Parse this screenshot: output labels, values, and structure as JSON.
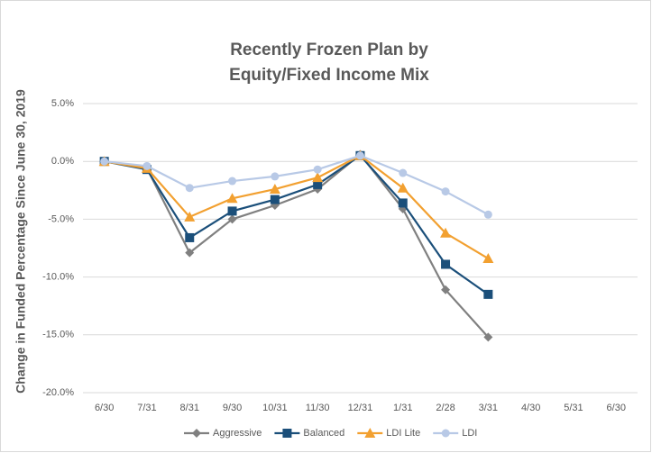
{
  "chart_data": {
    "type": "line",
    "title": [
      "Recently Frozen Plan by",
      "Equity/Fixed Income Mix"
    ],
    "y_label": "Change in Funded Percentage Since June 30, 2019",
    "categories": [
      "6/30",
      "7/31",
      "8/31",
      "9/30",
      "10/31",
      "11/30",
      "12/31",
      "1/31",
      "2/28",
      "3/31",
      "4/30",
      "5/31",
      "6/30"
    ],
    "series": [
      {
        "name": "Aggressive",
        "color": "#808080",
        "marker": "diamond",
        "values": [
          0.0,
          -0.6,
          -7.9,
          -5.0,
          -3.8,
          -2.4,
          0.6,
          -4.1,
          -11.1,
          -15.2,
          null,
          null,
          null
        ]
      },
      {
        "name": "Balanced",
        "color": "#1b4f7a",
        "marker": "square",
        "values": [
          0.0,
          -0.7,
          -6.6,
          -4.3,
          -3.3,
          -2.0,
          0.5,
          -3.6,
          -8.9,
          -11.5,
          null,
          null,
          null
        ]
      },
      {
        "name": "LDI Lite",
        "color": "#f2a030",
        "marker": "triangle",
        "values": [
          0.0,
          -0.6,
          -4.8,
          -3.2,
          -2.4,
          -1.4,
          0.5,
          -2.3,
          -6.2,
          -8.4,
          null,
          null,
          null
        ]
      },
      {
        "name": "LDI",
        "color": "#b8c9e6",
        "marker": "circle",
        "values": [
          0.0,
          -0.4,
          -2.3,
          -1.7,
          -1.3,
          -0.7,
          0.5,
          -1.0,
          -2.6,
          -4.6,
          null,
          null,
          null
        ]
      }
    ],
    "ylim": [
      -20,
      5
    ],
    "yticks": [
      {
        "value": 5,
        "label": "5.0%"
      },
      {
        "value": 0,
        "label": "0.0%"
      },
      {
        "value": -5,
        "label": "-5.0%"
      },
      {
        "value": -10,
        "label": "-10.0%"
      },
      {
        "value": -15,
        "label": "-15.0%"
      },
      {
        "value": -20,
        "label": "-20.0%"
      }
    ],
    "grid": true,
    "legend": "bottom"
  }
}
